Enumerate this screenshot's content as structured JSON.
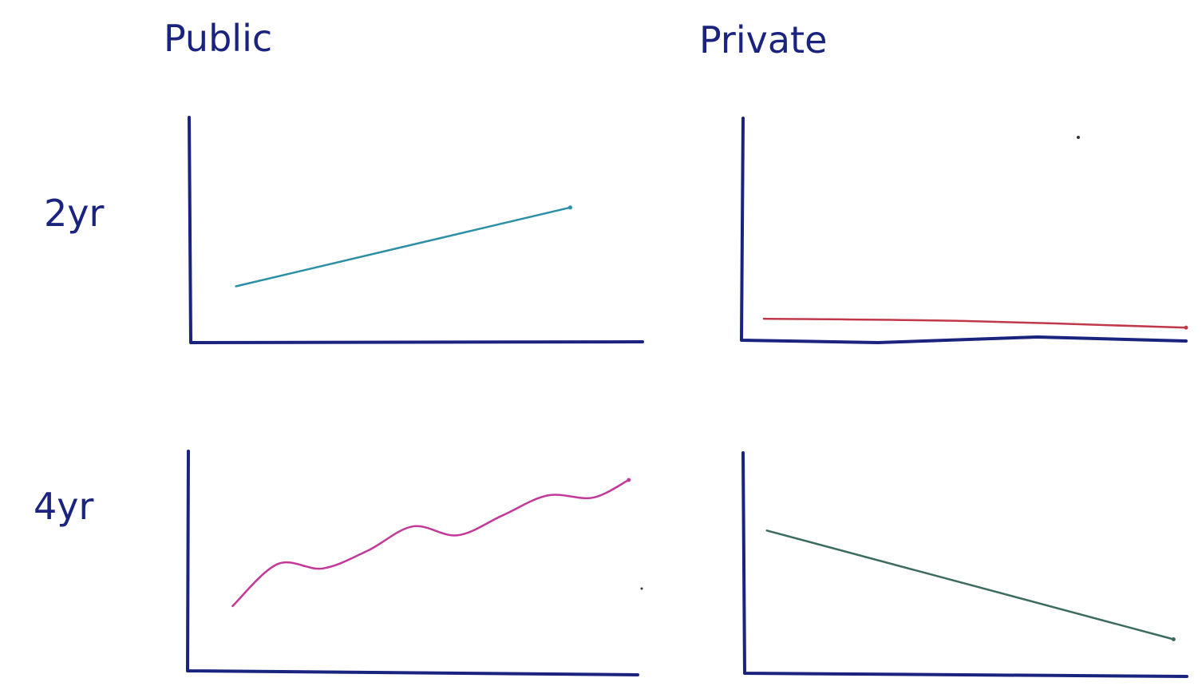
{
  "column_headers": [
    "Public",
    "Private"
  ],
  "row_headers": [
    "2yr",
    "4yr"
  ],
  "colors": {
    "ink": "#1a237e",
    "public_2yr": "#2b8fa6",
    "private_2yr": "#c0394b",
    "public_4yr": "#c2399a",
    "private_4yr": "#3c6b5f"
  },
  "chart_data": [
    {
      "type": "line",
      "title": "Public 2yr",
      "xlim": [
        0,
        1
      ],
      "ylim": [
        0,
        1
      ],
      "grid": false,
      "series": [
        {
          "name": "Public 2yr",
          "x": [
            0.1,
            0.84
          ],
          "values": [
            0.25,
            0.6
          ]
        }
      ]
    },
    {
      "type": "line",
      "title": "Private 2yr",
      "xlim": [
        0,
        1
      ],
      "ylim": [
        0,
        1
      ],
      "grid": false,
      "series": [
        {
          "name": "Private 2yr",
          "x": [
            0.05,
            0.5,
            1.0
          ],
          "values": [
            0.1,
            0.09,
            0.06
          ]
        }
      ]
    },
    {
      "type": "line",
      "title": "Public 4yr",
      "xlim": [
        0,
        1
      ],
      "ylim": [
        0,
        1
      ],
      "grid": false,
      "series": [
        {
          "name": "Public 4yr",
          "x": [
            0.1,
            0.2,
            0.3,
            0.4,
            0.5,
            0.6,
            0.7,
            0.8,
            0.9,
            0.98
          ],
          "values": [
            0.3,
            0.49,
            0.47,
            0.55,
            0.66,
            0.62,
            0.71,
            0.8,
            0.79,
            0.87
          ]
        }
      ]
    },
    {
      "type": "line",
      "title": "Private 4yr",
      "xlim": [
        0,
        1
      ],
      "ylim": [
        0,
        1
      ],
      "grid": false,
      "series": [
        {
          "name": "Private 4yr",
          "x": [
            0.05,
            0.97
          ],
          "values": [
            0.65,
            0.16
          ]
        }
      ]
    }
  ]
}
